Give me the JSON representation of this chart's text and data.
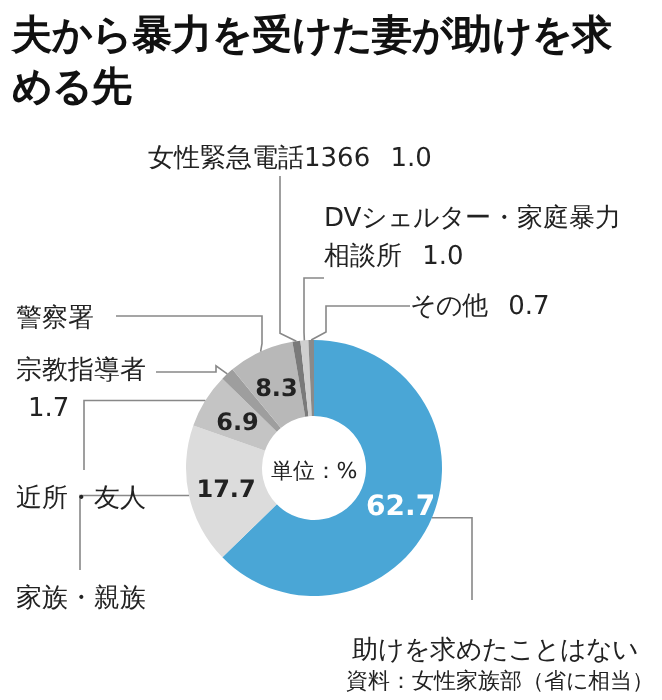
{
  "chart_data": {
    "type": "donut",
    "title": "夫から暴力を受けた妻が助けを求める先",
    "categories": [
      "助けを求めたことはない",
      "家族・親族",
      "近所・友人",
      "宗教指導者",
      "警察署",
      "女性緊急電話1366",
      "DVシェルター・家庭暴力相談所",
      "その他"
    ],
    "values": [
      62.7,
      17.7,
      6.9,
      1.7,
      8.3,
      1.0,
      1.0,
      0.7
    ],
    "value_labels": [
      "62.7",
      "17.7",
      "6.9",
      "1.7",
      "8.3",
      "1.0",
      "1.0",
      "0.7"
    ],
    "colors": [
      "#4aa6d6",
      "#dcdcdc",
      "#c4c4c4",
      "#9e9e9e",
      "#b8b8b8",
      "#7a7a7a",
      "#cfcfcf",
      "#8a8a8a"
    ],
    "annotations": [
      "単位：%",
      "資料：女性家族部（省に相当）"
    ]
  }
}
